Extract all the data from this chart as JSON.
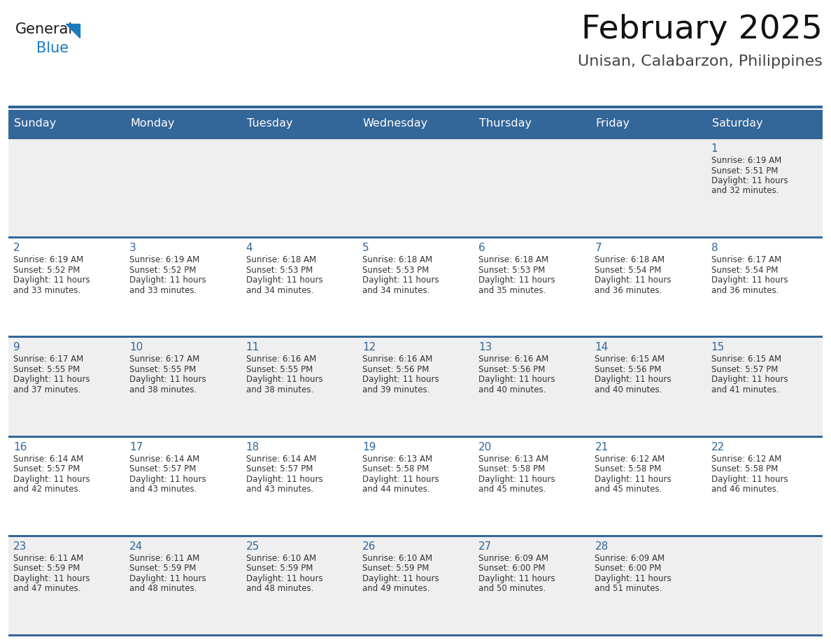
{
  "title": "February 2025",
  "subtitle": "Unisan, Calabarzon, Philippines",
  "header_bg": "#336699",
  "header_text_color": "#ffffff",
  "row_bg_even": "#efefef",
  "row_bg_odd": "#ffffff",
  "day_headers": [
    "Sunday",
    "Monday",
    "Tuesday",
    "Wednesday",
    "Thursday",
    "Friday",
    "Saturday"
  ],
  "grid_line_color": "#336699",
  "day_number_color": "#336699",
  "text_color": "#333333",
  "logo_general_color": "#1a1a1a",
  "logo_blue_color": "#1a7abf",
  "calendar_data": [
    [
      {
        "day": null,
        "sunrise": null,
        "sunset": null,
        "daylight_hours": null,
        "daylight_minutes": null
      },
      {
        "day": null,
        "sunrise": null,
        "sunset": null,
        "daylight_hours": null,
        "daylight_minutes": null
      },
      {
        "day": null,
        "sunrise": null,
        "sunset": null,
        "daylight_hours": null,
        "daylight_minutes": null
      },
      {
        "day": null,
        "sunrise": null,
        "sunset": null,
        "daylight_hours": null,
        "daylight_minutes": null
      },
      {
        "day": null,
        "sunrise": null,
        "sunset": null,
        "daylight_hours": null,
        "daylight_minutes": null
      },
      {
        "day": null,
        "sunrise": null,
        "sunset": null,
        "daylight_hours": null,
        "daylight_minutes": null
      },
      {
        "day": 1,
        "sunrise": "6:19 AM",
        "sunset": "5:51 PM",
        "daylight_hours": 11,
        "daylight_minutes": 32
      }
    ],
    [
      {
        "day": 2,
        "sunrise": "6:19 AM",
        "sunset": "5:52 PM",
        "daylight_hours": 11,
        "daylight_minutes": 33
      },
      {
        "day": 3,
        "sunrise": "6:19 AM",
        "sunset": "5:52 PM",
        "daylight_hours": 11,
        "daylight_minutes": 33
      },
      {
        "day": 4,
        "sunrise": "6:18 AM",
        "sunset": "5:53 PM",
        "daylight_hours": 11,
        "daylight_minutes": 34
      },
      {
        "day": 5,
        "sunrise": "6:18 AM",
        "sunset": "5:53 PM",
        "daylight_hours": 11,
        "daylight_minutes": 34
      },
      {
        "day": 6,
        "sunrise": "6:18 AM",
        "sunset": "5:53 PM",
        "daylight_hours": 11,
        "daylight_minutes": 35
      },
      {
        "day": 7,
        "sunrise": "6:18 AM",
        "sunset": "5:54 PM",
        "daylight_hours": 11,
        "daylight_minutes": 36
      },
      {
        "day": 8,
        "sunrise": "6:17 AM",
        "sunset": "5:54 PM",
        "daylight_hours": 11,
        "daylight_minutes": 36
      }
    ],
    [
      {
        "day": 9,
        "sunrise": "6:17 AM",
        "sunset": "5:55 PM",
        "daylight_hours": 11,
        "daylight_minutes": 37
      },
      {
        "day": 10,
        "sunrise": "6:17 AM",
        "sunset": "5:55 PM",
        "daylight_hours": 11,
        "daylight_minutes": 38
      },
      {
        "day": 11,
        "sunrise": "6:16 AM",
        "sunset": "5:55 PM",
        "daylight_hours": 11,
        "daylight_minutes": 38
      },
      {
        "day": 12,
        "sunrise": "6:16 AM",
        "sunset": "5:56 PM",
        "daylight_hours": 11,
        "daylight_minutes": 39
      },
      {
        "day": 13,
        "sunrise": "6:16 AM",
        "sunset": "5:56 PM",
        "daylight_hours": 11,
        "daylight_minutes": 40
      },
      {
        "day": 14,
        "sunrise": "6:15 AM",
        "sunset": "5:56 PM",
        "daylight_hours": 11,
        "daylight_minutes": 40
      },
      {
        "day": 15,
        "sunrise": "6:15 AM",
        "sunset": "5:57 PM",
        "daylight_hours": 11,
        "daylight_minutes": 41
      }
    ],
    [
      {
        "day": 16,
        "sunrise": "6:14 AM",
        "sunset": "5:57 PM",
        "daylight_hours": 11,
        "daylight_minutes": 42
      },
      {
        "day": 17,
        "sunrise": "6:14 AM",
        "sunset": "5:57 PM",
        "daylight_hours": 11,
        "daylight_minutes": 43
      },
      {
        "day": 18,
        "sunrise": "6:14 AM",
        "sunset": "5:57 PM",
        "daylight_hours": 11,
        "daylight_minutes": 43
      },
      {
        "day": 19,
        "sunrise": "6:13 AM",
        "sunset": "5:58 PM",
        "daylight_hours": 11,
        "daylight_minutes": 44
      },
      {
        "day": 20,
        "sunrise": "6:13 AM",
        "sunset": "5:58 PM",
        "daylight_hours": 11,
        "daylight_minutes": 45
      },
      {
        "day": 21,
        "sunrise": "6:12 AM",
        "sunset": "5:58 PM",
        "daylight_hours": 11,
        "daylight_minutes": 45
      },
      {
        "day": 22,
        "sunrise": "6:12 AM",
        "sunset": "5:58 PM",
        "daylight_hours": 11,
        "daylight_minutes": 46
      }
    ],
    [
      {
        "day": 23,
        "sunrise": "6:11 AM",
        "sunset": "5:59 PM",
        "daylight_hours": 11,
        "daylight_minutes": 47
      },
      {
        "day": 24,
        "sunrise": "6:11 AM",
        "sunset": "5:59 PM",
        "daylight_hours": 11,
        "daylight_minutes": 48
      },
      {
        "day": 25,
        "sunrise": "6:10 AM",
        "sunset": "5:59 PM",
        "daylight_hours": 11,
        "daylight_minutes": 48
      },
      {
        "day": 26,
        "sunrise": "6:10 AM",
        "sunset": "5:59 PM",
        "daylight_hours": 11,
        "daylight_minutes": 49
      },
      {
        "day": 27,
        "sunrise": "6:09 AM",
        "sunset": "6:00 PM",
        "daylight_hours": 11,
        "daylight_minutes": 50
      },
      {
        "day": 28,
        "sunrise": "6:09 AM",
        "sunset": "6:00 PM",
        "daylight_hours": 11,
        "daylight_minutes": 51
      },
      {
        "day": null,
        "sunrise": null,
        "sunset": null,
        "daylight_hours": null,
        "daylight_minutes": null
      }
    ]
  ],
  "fig_width": 11.88,
  "fig_height": 9.18,
  "dpi": 100
}
